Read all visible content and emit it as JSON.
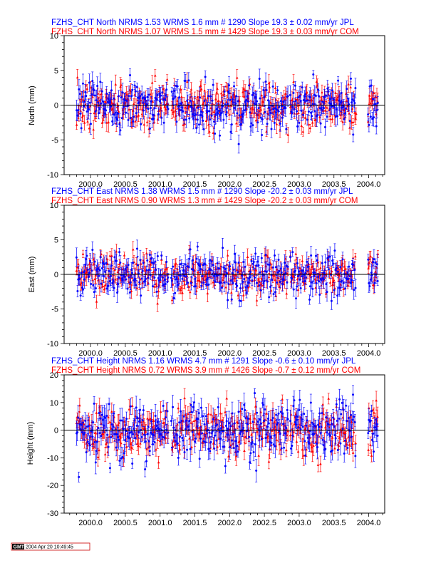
{
  "colors": {
    "jpl": "#0000ff",
    "com": "#ff0000",
    "zero": "#000000",
    "axis": "#000000",
    "background": "#ffffff"
  },
  "chart_data": [
    {
      "type": "scatter",
      "panel": "north",
      "title_jpl": "FZHS_CHT North NRMS 1.53 WRMS  1.6 mm # 1290 Slope   19.3 ±  0.02 mm/yr JPL",
      "title_com": "FZHS_CHT North NRMS 1.07 WRMS  1.5 mm # 1429 Slope   19.3 ±  0.03 mm/yr COM",
      "ylabel": "North (mm)",
      "xlim": [
        1999.62,
        2004.23
      ],
      "ylim": [
        -10,
        10
      ],
      "xticks": [
        "2000.0",
        "2000.5",
        "2001.0",
        "2001.5",
        "2002.0",
        "2002.5",
        "2003.0",
        "2003.5",
        "2004.0"
      ],
      "yticks": [
        "-10",
        "-5",
        "0",
        "5",
        "10"
      ],
      "series": [
        {
          "name": "JPL",
          "color": "#0000ff",
          "marker": "circle",
          "count": 1290,
          "nrms": 1.53,
          "wrms_mm": 1.6,
          "slope_mm_yr": 19.3,
          "slope_sigma": 0.02,
          "scatter_sigma_mm": 1.6
        },
        {
          "name": "COM",
          "color": "#ff0000",
          "marker": "triangle",
          "count": 1429,
          "nrms": 1.07,
          "wrms_mm": 1.5,
          "slope_mm_yr": 19.3,
          "slope_sigma": 0.03,
          "scatter_sigma_mm": 1.5
        }
      ],
      "data_gaps": [
        [
          2001.12,
          2001.16
        ],
        [
          2002.84,
          2002.87
        ],
        [
          2003.82,
          2003.99
        ]
      ]
    },
    {
      "type": "scatter",
      "panel": "east",
      "title_jpl": "FZHS_CHT East NRMS 1.38 WRMS  1.5 mm # 1290 Slope  -20.2 ±  0.03 mm/yr JPL",
      "title_com": "FZHS_CHT East NRMS 0.90 WRMS  1.3 mm # 1429 Slope  -20.2 ±  0.03 mm/yr COM",
      "ylabel": "East (mm)",
      "xlim": [
        1999.62,
        2004.23
      ],
      "ylim": [
        -10,
        10
      ],
      "xticks": [
        "2000.0",
        "2000.5",
        "2001.0",
        "2001.5",
        "2002.0",
        "2002.5",
        "2003.0",
        "2003.5",
        "2004.0"
      ],
      "yticks": [
        "-10",
        "-5",
        "0",
        "5",
        "10"
      ],
      "series": [
        {
          "name": "JPL",
          "color": "#0000ff",
          "marker": "circle",
          "count": 1290,
          "nrms": 1.38,
          "wrms_mm": 1.5,
          "slope_mm_yr": -20.2,
          "slope_sigma": 0.03,
          "scatter_sigma_mm": 1.5
        },
        {
          "name": "COM",
          "color": "#ff0000",
          "marker": "triangle",
          "count": 1429,
          "nrms": 0.9,
          "wrms_mm": 1.3,
          "slope_mm_yr": -20.2,
          "slope_sigma": 0.03,
          "scatter_sigma_mm": 1.3
        }
      ],
      "data_gaps": [
        [
          2001.12,
          2001.16
        ],
        [
          2002.84,
          2002.87
        ],
        [
          2003.82,
          2003.99
        ]
      ]
    },
    {
      "type": "scatter",
      "panel": "height",
      "title_jpl": "FZHS_CHT Height NRMS 1.16 WRMS  4.7 mm # 1291 Slope   -0.6 ±  0.10 mm/yr JPL",
      "title_com": "FZHS_CHT Height NRMS 0.72 WRMS  3.9 mm # 1426 Slope   -0.7 ±  0.12 mm/yr COM",
      "ylabel": "Height (mm)",
      "xlim": [
        1999.62,
        2004.23
      ],
      "ylim": [
        -30,
        20
      ],
      "xticks": [
        "2000.0",
        "2000.5",
        "2001.0",
        "2001.5",
        "2002.0",
        "2002.5",
        "2003.0",
        "2003.5",
        "2004.0"
      ],
      "yticks": [
        "-30",
        "-20",
        "-10",
        "0",
        "10",
        "20"
      ],
      "series": [
        {
          "name": "JPL",
          "color": "#0000ff",
          "marker": "circle",
          "count": 1291,
          "nrms": 1.16,
          "wrms_mm": 4.7,
          "slope_mm_yr": -0.6,
          "slope_sigma": 0.1,
          "scatter_sigma_mm": 4.7
        },
        {
          "name": "COM",
          "color": "#ff0000",
          "marker": "triangle",
          "count": 1426,
          "nrms": 0.72,
          "wrms_mm": 3.9,
          "slope_mm_yr": -0.7,
          "slope_sigma": 0.12,
          "scatter_sigma_mm": 3.9
        }
      ],
      "data_gaps": [
        [
          2001.12,
          2001.16
        ],
        [
          2002.84,
          2002.87
        ],
        [
          2003.82,
          2003.99
        ]
      ]
    }
  ],
  "footer": {
    "logo": "GMT",
    "timestamp": "2004 Apr 20 10:49:45"
  }
}
